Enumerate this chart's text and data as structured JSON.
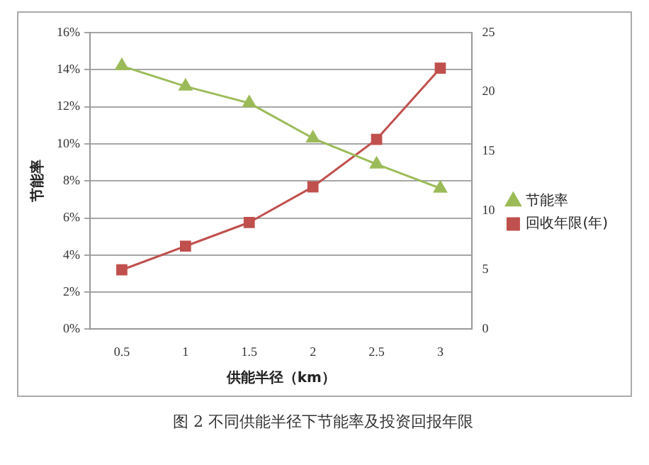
{
  "chart_data": {
    "type": "line",
    "ylabel": "节能率",
    "xlabel": "供能半径（km）",
    "annotations": [
      "图 2 不同供能半径下节能率及投资回报年限"
    ],
    "categories": [
      "0.5",
      "1",
      "1.5",
      "2",
      "2.5",
      "3"
    ],
    "series": [
      {
        "name": "节能率",
        "color": "#9bbb59",
        "marker": "triangle",
        "values": [
          14.2,
          13.1,
          12.2,
          10.3,
          8.9,
          7.6
        ]
      },
      {
        "name": "回收年限(年)",
        "color": "#c0504d",
        "marker": "square",
        "axis": "y2",
        "values": [
          5,
          7,
          9,
          12,
          16,
          22
        ]
      }
    ],
    "ylim": [
      0,
      16
    ],
    "yticks": [
      {
        "value": 0,
        "label": "0%"
      },
      {
        "value": 2,
        "label": "2%"
      },
      {
        "value": 4,
        "label": "4%"
      },
      {
        "value": 6,
        "label": "6%"
      },
      {
        "value": 8,
        "label": "8%"
      },
      {
        "value": 10,
        "label": "10%"
      },
      {
        "value": 12,
        "label": "12%"
      },
      {
        "value": 14,
        "label": "14%"
      },
      {
        "value": 16,
        "label": "16%"
      }
    ],
    "y2lim": [
      0,
      25
    ],
    "y2ticks": [
      0,
      5,
      10,
      15,
      20,
      25
    ],
    "grid": "y",
    "legend": "right",
    "line_style": "solid"
  }
}
